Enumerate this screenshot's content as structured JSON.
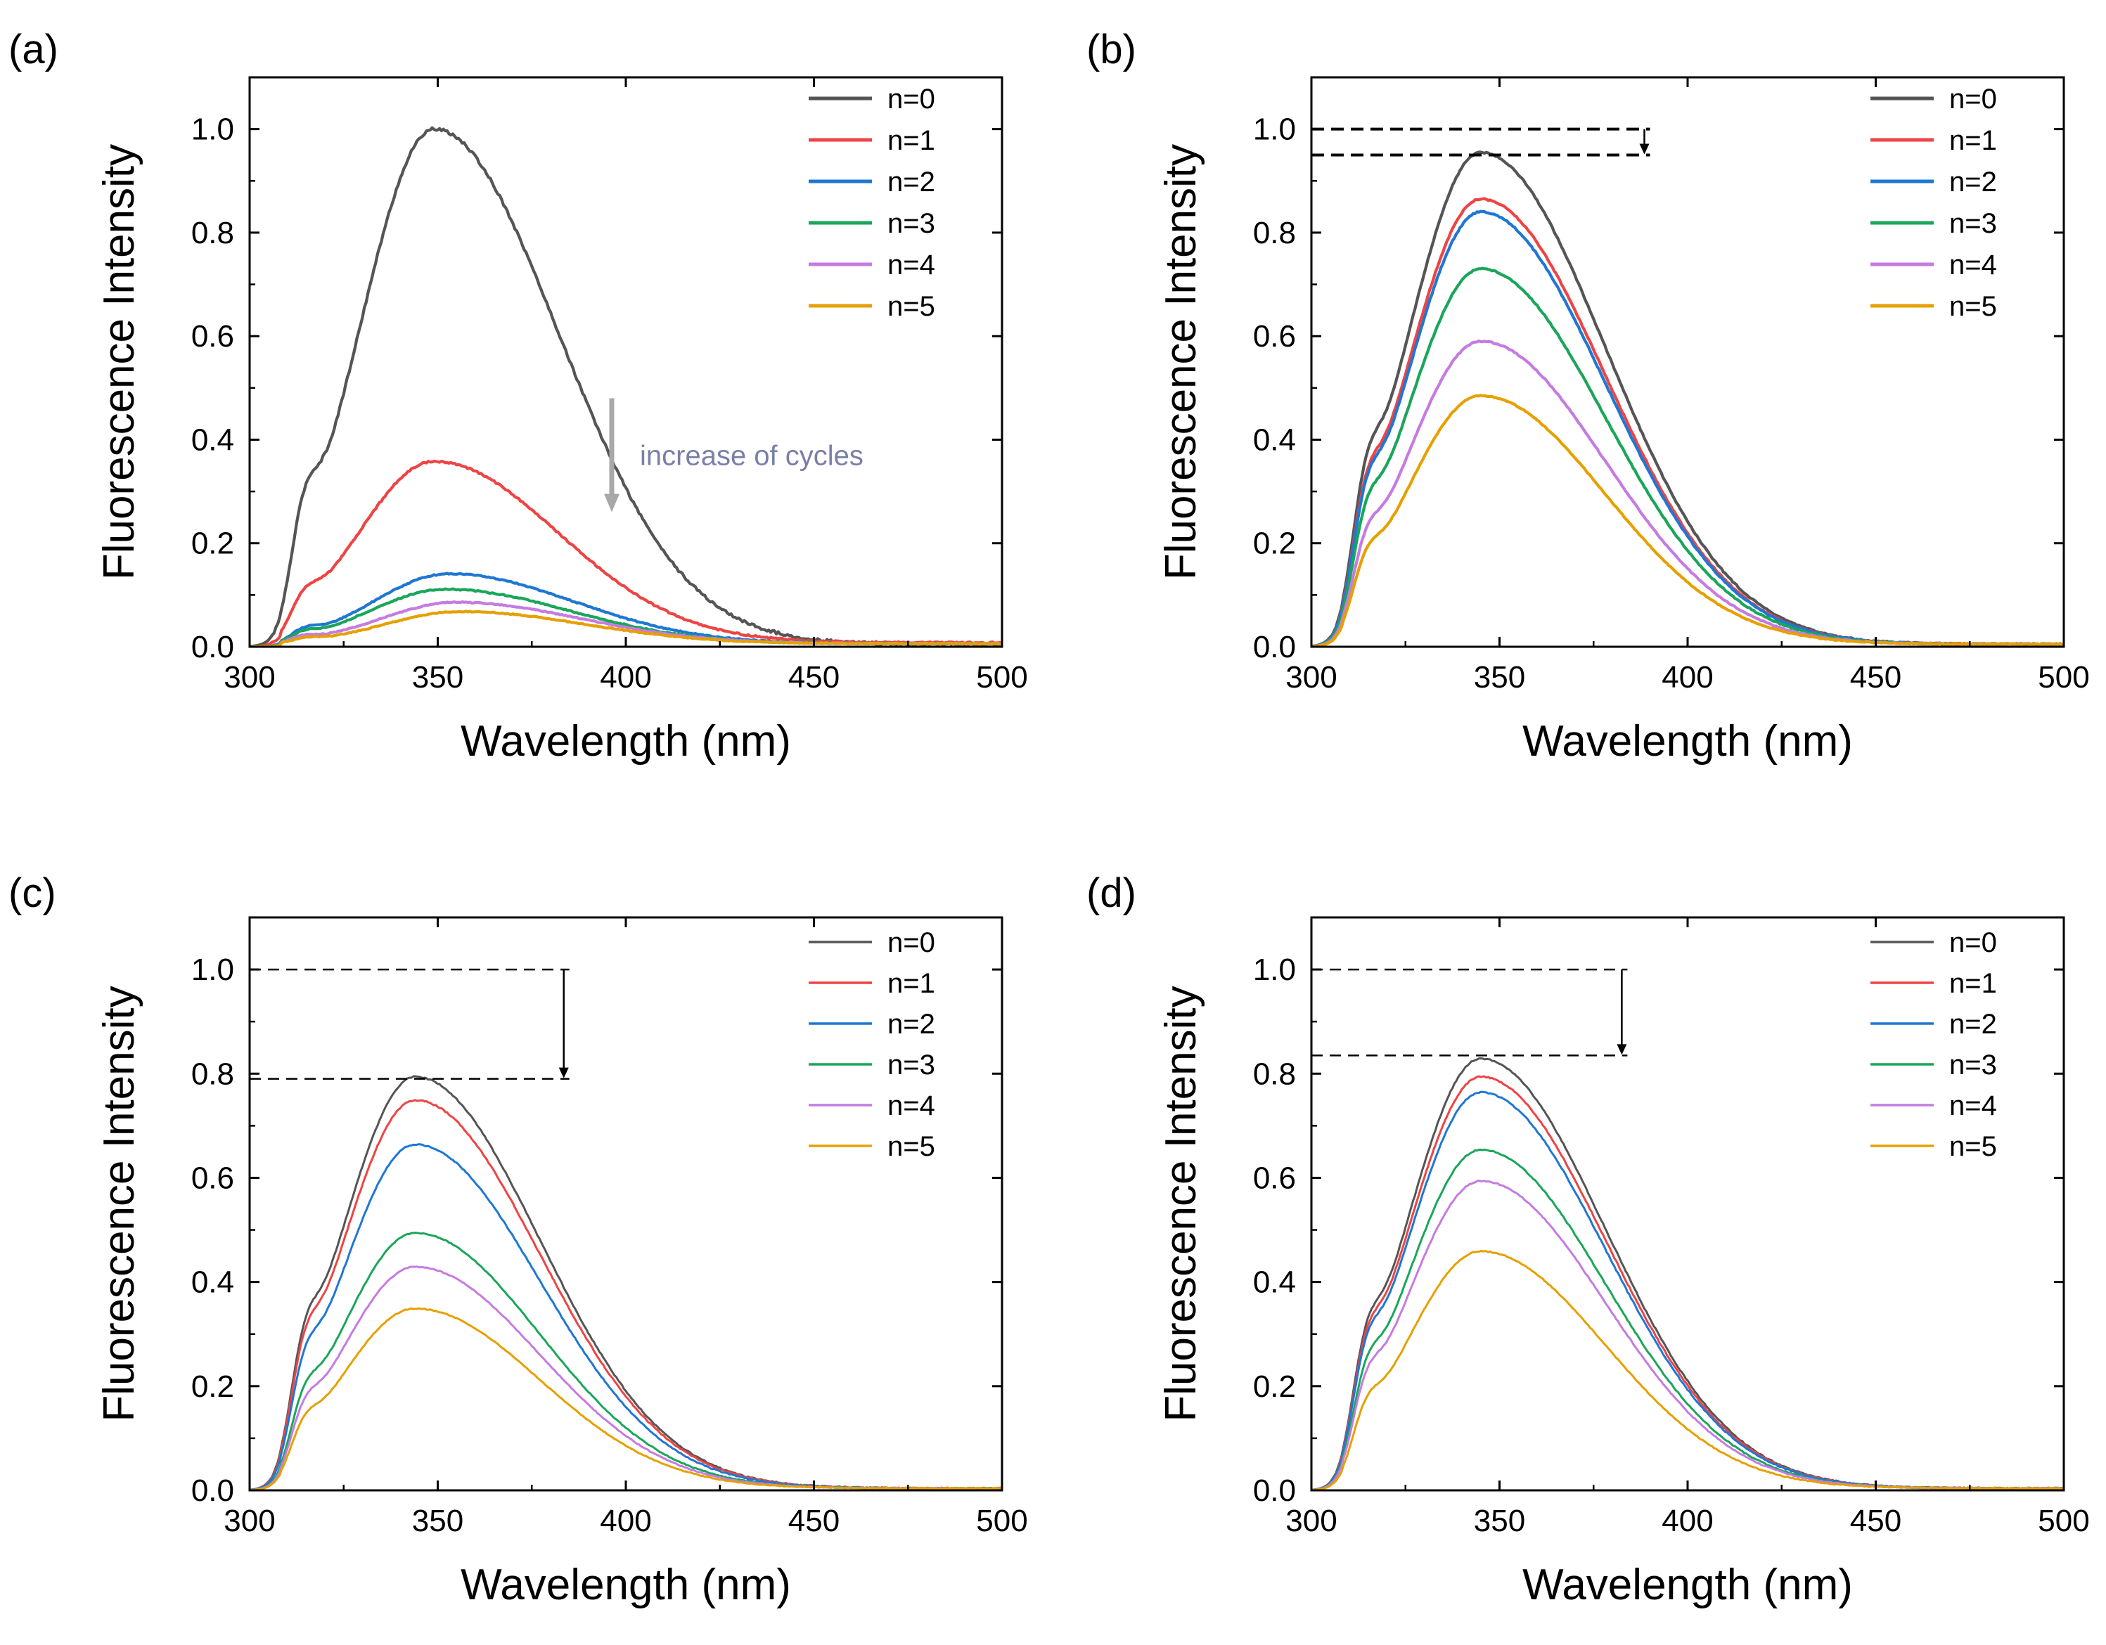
{
  "chart_data": [
    {
      "type": "line",
      "panel_label": "(a)",
      "xlabel": "Wavelength (nm)",
      "ylabel": "Fluorescence Intensity",
      "xlim": [
        300,
        500
      ],
      "ylim": [
        0,
        1.1
      ],
      "xticks": [
        300,
        350,
        400,
        450,
        500
      ],
      "yticks": [
        0.0,
        0.2,
        0.4,
        0.6,
        0.8,
        1.0
      ],
      "x_tick_labels": [
        "300",
        "350",
        "400",
        "450",
        "500"
      ],
      "y_tick_labels": [
        "0.0",
        "0.2",
        "0.4",
        "0.6",
        "0.8",
        "1.0"
      ],
      "legend_position": "top-right",
      "annotation": {
        "type": "arrow",
        "text": "increase of cycles",
        "x": 400,
        "y_from": 0.48,
        "y_to": 0.26,
        "color": "#a8a8a8"
      },
      "series": [
        {
          "name": "n=0",
          "color": "#555555",
          "peak_x": 349,
          "peak_y": 0.995,
          "baseline": 0.005
        },
        {
          "name": "n=1",
          "color": "#ee4444",
          "peak_x": 349,
          "peak_y": 0.35,
          "baseline": 0.008
        },
        {
          "name": "n=2",
          "color": "#1f77d4",
          "peak_x": 353,
          "peak_y": 0.135,
          "baseline": 0.006
        },
        {
          "name": "n=3",
          "color": "#1aa65a",
          "peak_x": 352,
          "peak_y": 0.105,
          "baseline": 0.006
        },
        {
          "name": "n=4",
          "color": "#c57be0",
          "peak_x": 355,
          "peak_y": 0.08,
          "baseline": 0.006
        },
        {
          "name": "n=5",
          "color": "#e6a000",
          "peak_x": 356,
          "peak_y": 0.062,
          "baseline": 0.006
        }
      ]
    },
    {
      "type": "line",
      "panel_label": "(b)",
      "xlabel": "Wavelength (nm)",
      "ylabel": "Fluorescence Intensity",
      "xlim": [
        300,
        500
      ],
      "ylim": [
        0,
        1.1
      ],
      "xticks": [
        300,
        350,
        400,
        450,
        500
      ],
      "yticks": [
        0.0,
        0.2,
        0.4,
        0.6,
        0.8,
        1.0
      ],
      "x_tick_labels": [
        "300",
        "350",
        "400",
        "450",
        "500"
      ],
      "y_tick_labels": [
        "0.0",
        "0.2",
        "0.4",
        "0.6",
        "0.8",
        "1.0"
      ],
      "legend_position": "top-right",
      "reference_lines": [
        1.0,
        0.95
      ],
      "reference_line_x_end": 390,
      "series": [
        {
          "name": "n=0",
          "color": "#555555",
          "peak_x": 345,
          "peak_y": 0.95,
          "baseline": 0.005
        },
        {
          "name": "n=1",
          "color": "#ee4444",
          "peak_x": 345,
          "peak_y": 0.86,
          "baseline": 0.005
        },
        {
          "name": "n=2",
          "color": "#1f77d4",
          "peak_x": 345,
          "peak_y": 0.835,
          "baseline": 0.005
        },
        {
          "name": "n=3",
          "color": "#1aa65a",
          "peak_x": 345,
          "peak_y": 0.725,
          "baseline": 0.005
        },
        {
          "name": "n=4",
          "color": "#c57be0",
          "peak_x": 345,
          "peak_y": 0.585,
          "baseline": 0.005
        },
        {
          "name": "n=5",
          "color": "#e6a000",
          "peak_x": 345,
          "peak_y": 0.48,
          "baseline": 0.005
        }
      ]
    },
    {
      "type": "line",
      "panel_label": "(c)",
      "xlabel": "Wavelength (nm)",
      "ylabel": "Fluorescence Intensity",
      "xlim": [
        300,
        500
      ],
      "ylim": [
        0,
        1.1
      ],
      "xticks": [
        300,
        350,
        400,
        450,
        500
      ],
      "yticks": [
        0.0,
        0.2,
        0.4,
        0.6,
        0.8,
        1.0
      ],
      "x_tick_labels": [
        "300",
        "350",
        "400",
        "450",
        "500"
      ],
      "y_tick_labels": [
        "0.0",
        "0.2",
        "0.4",
        "0.6",
        "0.8",
        "1.0"
      ],
      "legend_position": "top-right",
      "reference_lines": [
        1.0,
        0.79
      ],
      "reference_line_x_end": 385,
      "series": [
        {
          "name": "n=0",
          "color": "#555555",
          "peak_x": 344,
          "peak_y": 0.79,
          "baseline": 0.004
        },
        {
          "name": "n=1",
          "color": "#ee4444",
          "peak_x": 344,
          "peak_y": 0.745,
          "baseline": 0.004
        },
        {
          "name": "n=2",
          "color": "#1f77d4",
          "peak_x": 344,
          "peak_y": 0.66,
          "baseline": 0.004
        },
        {
          "name": "n=3",
          "color": "#1aa65a",
          "peak_x": 344,
          "peak_y": 0.49,
          "baseline": 0.004
        },
        {
          "name": "n=4",
          "color": "#c57be0",
          "peak_x": 344,
          "peak_y": 0.425,
          "baseline": 0.004
        },
        {
          "name": "n=5",
          "color": "#e6a000",
          "peak_x": 344,
          "peak_y": 0.345,
          "baseline": 0.004
        }
      ]
    },
    {
      "type": "line",
      "panel_label": "(d)",
      "xlabel": "Wavelength (nm)",
      "ylabel": "Fluorescence Intensity",
      "xlim": [
        300,
        500
      ],
      "ylim": [
        0,
        1.1
      ],
      "xticks": [
        300,
        350,
        400,
        450,
        500
      ],
      "yticks": [
        0.0,
        0.2,
        0.4,
        0.6,
        0.8,
        1.0
      ],
      "x_tick_labels": [
        "300",
        "350",
        "400",
        "450",
        "500"
      ],
      "y_tick_labels": [
        "0.0",
        "0.2",
        "0.4",
        "0.6",
        "0.8",
        "1.0"
      ],
      "legend_position": "top-right",
      "reference_lines": [
        1.0,
        0.835
      ],
      "reference_line_x_end": 384,
      "series": [
        {
          "name": "n=0",
          "color": "#555555",
          "peak_x": 345,
          "peak_y": 0.825,
          "baseline": 0.004
        },
        {
          "name": "n=1",
          "color": "#ee4444",
          "peak_x": 345,
          "peak_y": 0.79,
          "baseline": 0.004
        },
        {
          "name": "n=2",
          "color": "#1f77d4",
          "peak_x": 345,
          "peak_y": 0.76,
          "baseline": 0.004
        },
        {
          "name": "n=3",
          "color": "#1aa65a",
          "peak_x": 345,
          "peak_y": 0.65,
          "baseline": 0.004
        },
        {
          "name": "n=4",
          "color": "#c57be0",
          "peak_x": 345,
          "peak_y": 0.59,
          "baseline": 0.004
        },
        {
          "name": "n=5",
          "color": "#e6a000",
          "peak_x": 345,
          "peak_y": 0.455,
          "baseline": 0.004
        }
      ]
    }
  ]
}
